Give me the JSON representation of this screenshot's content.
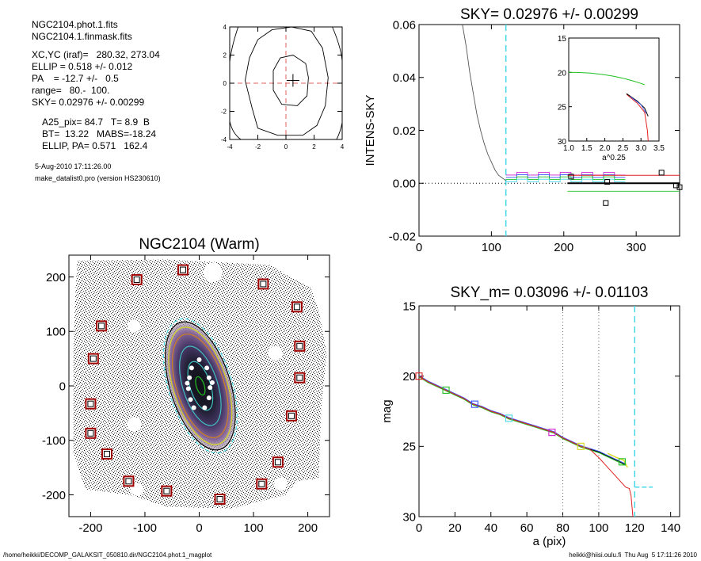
{
  "header": {
    "lines": [
      "NGC2104.phot.1.fits",
      "NGC2104.1.finmask.fits",
      "XC,YC (iraf)=   280.32, 273.04",
      "ELLIP = 0.518 +/- 0.012",
      "PA    = -12.7 +/-   0.5",
      "range=   80.-  100.",
      "SKY= 0.02976 +/- 0.00299",
      "A25_pix= 84.7   T= 8.9  B",
      "BT=  13.22   MABS=-18.24",
      "ELLIP, PA= 0.571   162.4"
    ],
    "date": "5-Aug-2010 17:11:26.00",
    "program": "make_datalist0.pro (version HS230610)"
  },
  "footer": {
    "left": "/home/heikki/DECOMP_GALAKSIT_050810.dir/NGC2104.phot.1_magplot",
    "right": "heikki@hiisi.oulu.fi  Thu Aug  5 17:11:26 2010"
  },
  "colors": {
    "dashed_sky": "#44d8e8",
    "center_cross": "#e06060",
    "red": "#e02020",
    "green": "#20c020",
    "blue": "#3050ff",
    "magenta": "#d020d0",
    "yellow": "#d8d820",
    "mask_box": "#a00000"
  },
  "chart_data": [
    {
      "id": "contour",
      "type": "contour",
      "x_ticks": [
        "-4",
        "-2",
        "0",
        "2",
        "4"
      ],
      "y_ticks": [
        "-4",
        "-2",
        "0",
        "2",
        "4"
      ],
      "xlim": [
        -4,
        4
      ],
      "ylim": [
        -4,
        4
      ]
    },
    {
      "id": "sky",
      "type": "line",
      "title": "SKY= 0.02976 +/- 0.00299",
      "ylabel": "INTENS-SKY",
      "xlim": [
        0,
        360
      ],
      "ylim": [
        -0.02,
        0.06
      ],
      "x_ticks": [
        "0",
        "100",
        "200",
        "300"
      ],
      "y_ticks": [
        "-0.02",
        "0.00",
        "0.02",
        "0.04",
        "0.06"
      ],
      "sky_radius_dashed": 120,
      "profile_x": [
        60,
        65,
        70,
        75,
        80,
        85,
        90,
        95,
        100,
        105,
        110,
        115,
        120
      ],
      "profile_y": [
        0.06,
        0.052,
        0.042,
        0.034,
        0.026,
        0.02,
        0.015,
        0.011,
        0.008,
        0.005,
        0.003,
        0.002,
        0.001
      ],
      "squares_x": [
        210,
        260,
        335,
        355,
        360
      ],
      "squares_y": [
        0.0025,
        0.0005,
        0.004,
        -0.0008,
        -0.0015
      ],
      "outlier_square": [
        258,
        -0.0075
      ],
      "sky_line": [
        205,
        360,
        0.0
      ],
      "inset": {
        "xlabel": "a^0.25",
        "x_ticks": [
          "1.0",
          "1.5",
          "2.0",
          "2.5",
          "3.0",
          "3.5"
        ],
        "y_ticks": [
          "15",
          "20",
          "25",
          "30"
        ],
        "xlim": [
          1.0,
          3.5
        ],
        "ylim": [
          30,
          15
        ]
      }
    },
    {
      "id": "image",
      "type": "image",
      "title": "NGC2104 (Warm)",
      "xlim": [
        -240,
        240
      ],
      "ylim": [
        -240,
        240
      ],
      "x_ticks": [
        "-200",
        "-100",
        "0",
        "100",
        "200"
      ],
      "y_ticks": [
        "-200",
        "-100",
        "0",
        "100",
        "200"
      ],
      "ellipse_ellip": 0.571,
      "ellipse_pa": 162.4,
      "mask_boxes": [
        [
          -115,
          195
        ],
        [
          -30,
          213
        ],
        [
          118,
          187
        ],
        [
          180,
          145
        ],
        [
          -180,
          110
        ],
        [
          185,
          73
        ],
        [
          -195,
          50
        ],
        [
          185,
          15
        ],
        [
          -200,
          -33
        ],
        [
          170,
          -55
        ],
        [
          -200,
          -87
        ],
        [
          -170,
          -125
        ],
        [
          145,
          -140
        ],
        [
          -130,
          -175
        ],
        [
          -60,
          -193
        ],
        [
          115,
          -180
        ],
        [
          38,
          -208
        ]
      ]
    },
    {
      "id": "profile",
      "type": "line",
      "title": "SKY_m=  0.03096 +/- 0.01103",
      "xlabel": "a (pix)",
      "ylabel": "mag",
      "xlim": [
        0,
        145
      ],
      "ylim": [
        30,
        15
      ],
      "x_ticks": [
        "0",
        "20",
        "40",
        "60",
        "80",
        "100",
        "120",
        "140"
      ],
      "y_ticks": [
        "15",
        "20",
        "25",
        "30"
      ],
      "range_lines": [
        80,
        100
      ],
      "sky_radius_dashed": 120,
      "mag_x": [
        0,
        5,
        10,
        15,
        20,
        25,
        30,
        35,
        40,
        45,
        50,
        55,
        60,
        65,
        70,
        75,
        80,
        85,
        90,
        95,
        100,
        105,
        110,
        115
      ],
      "mag_y": [
        20.0,
        20.4,
        20.7,
        21.0,
        21.3,
        21.6,
        22.0,
        22.2,
        22.5,
        22.7,
        23.0,
        23.2,
        23.4,
        23.6,
        23.8,
        24.0,
        24.4,
        24.7,
        25.0,
        25.2,
        25.4,
        25.7,
        26.0,
        26.3
      ],
      "squares": [
        [
          0,
          20.0
        ],
        [
          15,
          21.0
        ],
        [
          31,
          22.0
        ],
        [
          50,
          23.0
        ],
        [
          74,
          24.0
        ],
        [
          90,
          25.0
        ],
        [
          113,
          26.1
        ]
      ],
      "square_colors": [
        "red",
        "green",
        "blue",
        "cyan",
        "magenta",
        "yellow",
        "green"
      ],
      "sky_mag_line": [
        120,
        130,
        27.9
      ]
    }
  ]
}
